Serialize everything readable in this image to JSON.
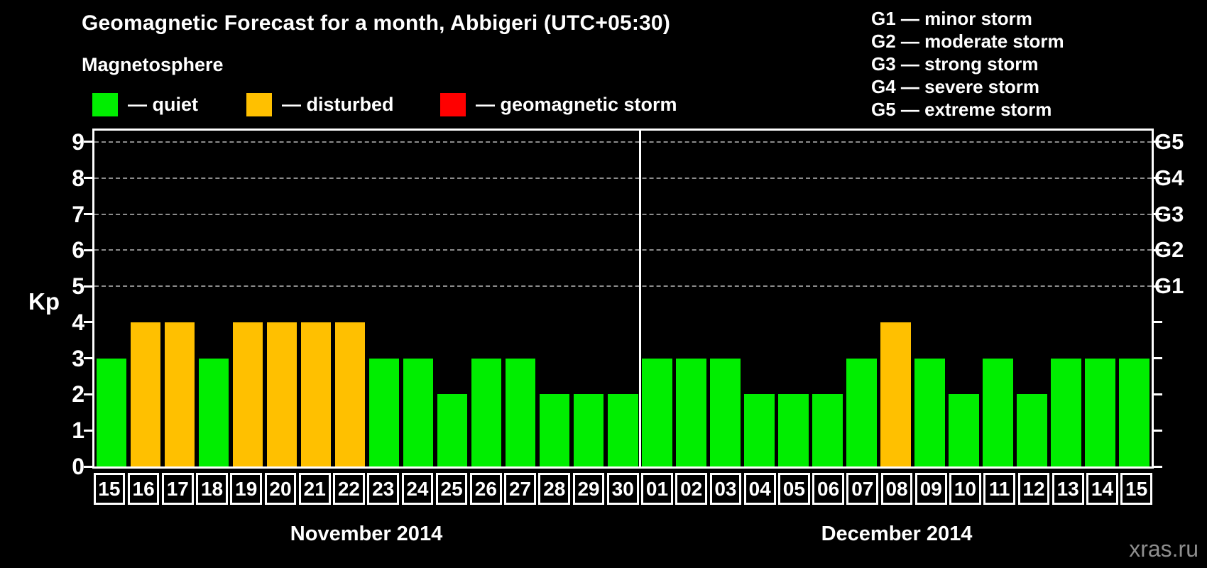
{
  "title": "Geomagnetic Forecast for a month, Abbigeri (UTC+05:30)",
  "magnetosphere_legend": {
    "heading": "Magnetosphere",
    "items": [
      {
        "status": "quiet",
        "swatch_color": "#00ee00",
        "label": "— quiet"
      },
      {
        "status": "disturbed",
        "swatch_color": "#ffc000",
        "label": "— disturbed"
      },
      {
        "status": "storm",
        "swatch_color": "#ff0000",
        "label": "— geomagnetic storm"
      }
    ]
  },
  "storm_scale_legend": {
    "separator": "—",
    "items": [
      {
        "code": "G1",
        "label": "minor storm"
      },
      {
        "code": "G2",
        "label": "moderate storm"
      },
      {
        "code": "G3",
        "label": "strong storm"
      },
      {
        "code": "G4",
        "label": "severe storm"
      },
      {
        "code": "G5",
        "label": "extreme storm"
      }
    ]
  },
  "watermark": "xras.ru",
  "chart_data": {
    "type": "bar",
    "title": "Geomagnetic Forecast for a month, Abbigeri (UTC+05:30)",
    "ylabel": "Kp",
    "ylim": [
      0,
      9
    ],
    "yticks": [
      0,
      1,
      2,
      3,
      4,
      5,
      6,
      7,
      8,
      9
    ],
    "gridlines_at": [
      5,
      6,
      7,
      8,
      9
    ],
    "grid": "dashed-horizontal",
    "legend_position": "top",
    "right_axis_labels": [
      {
        "text": "G5",
        "kp": 9
      },
      {
        "text": "G4",
        "kp": 8
      },
      {
        "text": "G3",
        "kp": 7
      },
      {
        "text": "G2",
        "kp": 6
      },
      {
        "text": "G1",
        "kp": 5
      }
    ],
    "status_colors": {
      "quiet": "#00ee00",
      "disturbed": "#ffc000",
      "storm": "#ff0000"
    },
    "groups": [
      {
        "label": "November 2014",
        "categories": [
          "15",
          "16",
          "17",
          "18",
          "19",
          "20",
          "21",
          "22",
          "23",
          "24",
          "25",
          "26",
          "27",
          "28",
          "29",
          "30"
        ],
        "values": [
          3,
          4,
          4,
          3,
          4,
          4,
          4,
          4,
          3,
          3,
          2,
          3,
          3,
          2,
          2,
          2
        ],
        "statuses": [
          "quiet",
          "disturbed",
          "disturbed",
          "quiet",
          "disturbed",
          "disturbed",
          "disturbed",
          "disturbed",
          "quiet",
          "quiet",
          "quiet",
          "quiet",
          "quiet",
          "quiet",
          "quiet",
          "quiet"
        ]
      },
      {
        "label": "December 2014",
        "categories": [
          "01",
          "02",
          "03",
          "04",
          "05",
          "06",
          "07",
          "08",
          "09",
          "10",
          "11",
          "12",
          "13",
          "14",
          "15"
        ],
        "values": [
          3,
          3,
          3,
          2,
          2,
          2,
          3,
          4,
          3,
          2,
          3,
          2,
          3,
          3,
          3
        ],
        "statuses": [
          "quiet",
          "quiet",
          "quiet",
          "quiet",
          "quiet",
          "quiet",
          "quiet",
          "disturbed",
          "quiet",
          "quiet",
          "quiet",
          "quiet",
          "quiet",
          "quiet",
          "quiet"
        ]
      }
    ]
  }
}
